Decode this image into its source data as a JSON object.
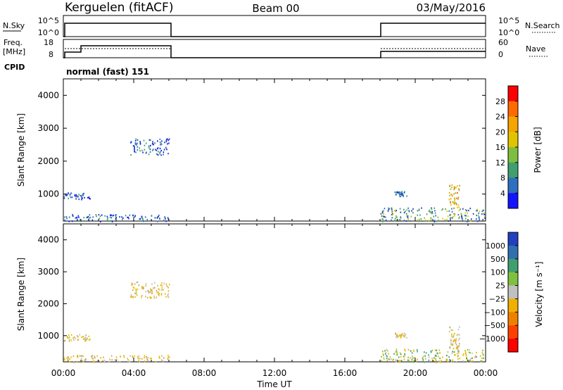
{
  "header": {
    "station": "Kerguelen (fitACF)",
    "beam": "Beam 00",
    "date": "03/May/2016"
  },
  "status_panels": {
    "nsky_label": "N.Sky",
    "nsky_ticks": [
      "10^5",
      "10^0"
    ],
    "nsearch_label": "N.Search",
    "nsearch_ticks": [
      "10^5",
      "10^0"
    ],
    "freq_label_1": "Freq.",
    "freq_label_2": "[MHz]",
    "freq_ticks": [
      "18",
      "8"
    ],
    "nave_label": "Nave",
    "nave_ticks": [
      "60",
      "0"
    ],
    "cpid_label": "CPID",
    "cpid_value": "normal (fast) 151"
  },
  "chart_data": [
    {
      "type": "heatmap",
      "name": "power",
      "ylabel": "Slant Range [km]",
      "yticks": [
        "4000",
        "3000",
        "2000",
        "1000"
      ],
      "ylim": [
        180,
        4500
      ],
      "xlim": [
        0,
        24
      ],
      "colorbar_label": "Power [dB]",
      "colorbar_ticks": [
        "28",
        "24",
        "20",
        "16",
        "12",
        "8",
        "4"
      ],
      "colorbar_colors": [
        "#ff0000",
        "#ff6a00",
        "#f5a400",
        "#e2c300",
        "#7fbf3f",
        "#3f9f6f",
        "#2f6fbf",
        "#1414ff"
      ],
      "regions": [
        {
          "x": [
            0.0,
            6.0
          ],
          "y": [
            180,
            400
          ],
          "level": "low"
        },
        {
          "x": [
            0.0,
            1.5
          ],
          "y": [
            850,
            1050
          ],
          "level": "low"
        },
        {
          "x": [
            3.8,
            6.0
          ],
          "y": [
            2200,
            2700
          ],
          "level": "low"
        },
        {
          "x": [
            18.0,
            24.0
          ],
          "y": [
            180,
            600
          ],
          "level": "mixed"
        },
        {
          "x": [
            18.8,
            19.5
          ],
          "y": [
            950,
            1100
          ],
          "level": "low"
        },
        {
          "x": [
            21.9,
            22.5
          ],
          "y": [
            600,
            1300
          ],
          "level": "high"
        }
      ]
    },
    {
      "type": "heatmap",
      "name": "velocity",
      "ylabel": "Slant Range [km]",
      "yticks": [
        "4000",
        "3000",
        "2000",
        "1000"
      ],
      "ylim": [
        180,
        4500
      ],
      "xlim": [
        0,
        24
      ],
      "xticks": [
        "00:00",
        "04:00",
        "08:00",
        "12:00",
        "16:00",
        "20:00",
        "00:00"
      ],
      "xlabel": "Time UT",
      "colorbar_label": "Velocity [m s⁻¹]",
      "colorbar_ticks": [
        "1000",
        "500",
        "100",
        "25",
        "−25",
        "−100",
        "−500",
        "−1000"
      ],
      "colorbar_colors": [
        "#2040c0",
        "#3070b0",
        "#3f9f6f",
        "#80c040",
        "#c0c0c0",
        "#f0b000",
        "#f08000",
        "#ff4000",
        "#ff0000"
      ],
      "regions": [
        {
          "x": [
            0.0,
            6.0
          ],
          "y": [
            180,
            400
          ],
          "level": "slow"
        },
        {
          "x": [
            0.0,
            1.5
          ],
          "y": [
            850,
            1050
          ],
          "level": "slow"
        },
        {
          "x": [
            3.8,
            6.0
          ],
          "y": [
            2200,
            2700
          ],
          "level": "slow"
        },
        {
          "x": [
            18.0,
            24.0
          ],
          "y": [
            180,
            600
          ],
          "level": "mixed"
        },
        {
          "x": [
            18.8,
            19.5
          ],
          "y": [
            950,
            1100
          ],
          "level": "slow"
        },
        {
          "x": [
            21.9,
            22.5
          ],
          "y": [
            600,
            1300
          ],
          "level": "slow"
        }
      ]
    }
  ]
}
